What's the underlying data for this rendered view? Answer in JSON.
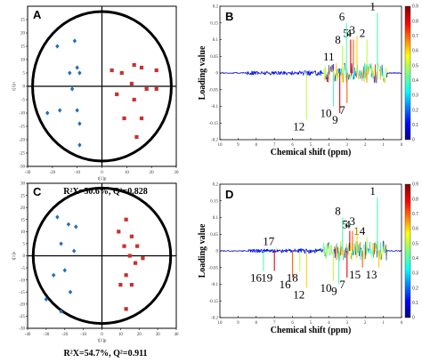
{
  "chart_data": [
    {
      "type": "scatter",
      "panel_label": "A",
      "xlabel": "t[1]p",
      "ylabel": "t[1]o",
      "xlim": [
        -30,
        30
      ],
      "ylim": [
        -30,
        30
      ],
      "xticks": [
        -30,
        -20,
        -10,
        0,
        10,
        20,
        30
      ],
      "yticks": [
        -30,
        -25,
        -20,
        -15,
        -10,
        -5,
        0,
        5,
        10,
        15,
        20,
        25
      ],
      "ellipse": {
        "rx": 28,
        "ry": 28
      },
      "stats": "R²X=50.6%, Q²=0.828",
      "series": [
        {
          "marker": "diamond",
          "color": "#1f6fbf",
          "points": [
            [
              -11,
              17
            ],
            [
              -18,
              15
            ],
            [
              -10,
              7
            ],
            [
              -13,
              5
            ],
            [
              -9,
              5
            ],
            [
              -12,
              -1
            ],
            [
              -22,
              -10
            ],
            [
              -17,
              -9
            ],
            [
              -10,
              -9
            ],
            [
              -9,
              -14
            ],
            [
              -9,
              -22
            ]
          ]
        },
        {
          "marker": "square",
          "color": "#c8312e",
          "points": [
            [
              4,
              6
            ],
            [
              13,
              8
            ],
            [
              16,
              7
            ],
            [
              8,
              5
            ],
            [
              22,
              6
            ],
            [
              12,
              1
            ],
            [
              18,
              -1
            ],
            [
              22,
              -1
            ],
            [
              6,
              -3
            ],
            [
              13,
              -5
            ],
            [
              9,
              -12
            ],
            [
              16,
              -12
            ],
            [
              14,
              -19
            ]
          ]
        }
      ]
    },
    {
      "type": "line",
      "panel_label": "B",
      "xlabel": "Chemical shift (ppm)",
      "ylabel": "Loading value",
      "xlim": [
        10,
        0
      ],
      "ylim": [
        -0.2,
        0.2
      ],
      "xticks": [
        10,
        9,
        8,
        7,
        6,
        5,
        4,
        3,
        2,
        1,
        0
      ],
      "yticks": [
        -0.2,
        -0.15,
        -0.1,
        -0.05,
        0,
        0.05,
        0.1,
        0.15,
        0.2
      ],
      "colorbar": {
        "min": 0,
        "max": 0.9,
        "ticks": [
          0,
          0.1,
          0.2,
          0.3,
          0.4,
          0.5,
          0.6,
          0.7,
          0.8,
          0.9
        ]
      },
      "peaks": [
        {
          "ppm": 1.33,
          "loading": 0.18,
          "label": "1"
        },
        {
          "ppm": 1.9,
          "loading": 0.1,
          "label": "2"
        },
        {
          "ppm": 2.45,
          "loading": 0.11,
          "label": "3"
        },
        {
          "ppm": 2.65,
          "loading": 0.1,
          "label": "4"
        },
        {
          "ppm": 2.8,
          "loading": 0.1,
          "label": "5"
        },
        {
          "ppm": 3.03,
          "loading": 0.15,
          "label": "6"
        },
        {
          "ppm": 3.25,
          "loading": 0.08,
          "label": "8"
        },
        {
          "ppm": 3.6,
          "loading": 0.03,
          "label": "11"
        },
        {
          "ppm": 3.0,
          "loading": -0.09,
          "label": "7"
        },
        {
          "ppm": 3.4,
          "loading": -0.12,
          "label": "9"
        },
        {
          "ppm": 3.75,
          "loading": -0.1,
          "label": "10"
        },
        {
          "ppm": 5.23,
          "loading": -0.14,
          "label": "12"
        }
      ]
    },
    {
      "type": "scatter",
      "panel_label": "C",
      "xlabel": "t[1]p",
      "ylabel": "t[1]o",
      "xlim": [
        -40,
        40
      ],
      "ylim": [
        -30,
        30
      ],
      "xticks": [
        -40,
        -30,
        -20,
        -10,
        0,
        10,
        20,
        30,
        40
      ],
      "yticks": [
        -30,
        -25,
        -20,
        -15,
        -10,
        -5,
        0,
        5,
        10,
        15,
        20,
        25,
        30
      ],
      "ellipse": {
        "rx": 37,
        "ry": 28
      },
      "stats": "R²X=54.7%, Q²=0.911",
      "series": [
        {
          "marker": "diamond",
          "color": "#1f6fbf",
          "points": [
            [
              -24,
              16
            ],
            [
              -18,
              13
            ],
            [
              -14,
              12
            ],
            [
              -22,
              5
            ],
            [
              -15,
              2
            ],
            [
              -20,
              -6
            ],
            [
              -26,
              -8
            ],
            [
              -17,
              -15
            ],
            [
              -30,
              -18
            ],
            [
              -22,
              -23
            ]
          ]
        },
        {
          "marker": "square",
          "color": "#c8312e",
          "points": [
            [
              13,
              15
            ],
            [
              9,
              10
            ],
            [
              16,
              8
            ],
            [
              19,
              4
            ],
            [
              12,
              4
            ],
            [
              15,
              0
            ],
            [
              22,
              -1
            ],
            [
              18,
              -3
            ],
            [
              13,
              -8
            ],
            [
              10,
              -12
            ],
            [
              16,
              -12
            ],
            [
              13,
              -22
            ]
          ]
        }
      ]
    },
    {
      "type": "line",
      "panel_label": "D",
      "xlabel": "Chemical shift (ppm)",
      "ylabel": "Loading value",
      "xlim": [
        10,
        0
      ],
      "ylim": [
        -0.2,
        0.2
      ],
      "xticks": [
        10,
        9,
        8,
        7,
        6,
        5,
        4,
        3,
        2,
        1,
        0
      ],
      "yticks": [
        -0.2,
        -0.15,
        -0.1,
        -0.05,
        0,
        0.05,
        0.1,
        0.15,
        0.2
      ],
      "colorbar": {
        "min": 0,
        "max": 0.9,
        "ticks": [
          0,
          0.1,
          0.2,
          0.3,
          0.4,
          0.5,
          0.6,
          0.7,
          0.8,
          0.9
        ]
      },
      "peaks": [
        {
          "ppm": 1.33,
          "loading": 0.16,
          "label": "1"
        },
        {
          "ppm": 1.9,
          "loading": 0.04,
          "label": "14"
        },
        {
          "ppm": 2.45,
          "loading": 0.07,
          "label": "3"
        },
        {
          "ppm": 2.7,
          "loading": 0.06,
          "label": "4"
        },
        {
          "ppm": 2.85,
          "loading": 0.06,
          "label": "5"
        },
        {
          "ppm": 3.25,
          "loading": 0.1,
          "label": "8"
        },
        {
          "ppm": 6.9,
          "loading": 0.01,
          "label": "17"
        },
        {
          "ppm": 1.25,
          "loading": -0.05,
          "label": "13"
        },
        {
          "ppm": 2.15,
          "loading": -0.05,
          "label": "15"
        },
        {
          "ppm": 3.0,
          "loading": -0.08,
          "label": "7"
        },
        {
          "ppm": 3.45,
          "loading": -0.1,
          "label": "9"
        },
        {
          "ppm": 3.75,
          "loading": -0.09,
          "label": "10"
        },
        {
          "ppm": 5.23,
          "loading": -0.11,
          "label": "12"
        },
        {
          "ppm": 6.0,
          "loading": -0.08,
          "label": "16"
        },
        {
          "ppm": 7.0,
          "loading": -0.06,
          "label": "19"
        },
        {
          "ppm": 7.6,
          "loading": -0.06,
          "label": "16"
        },
        {
          "ppm": 5.6,
          "loading": -0.06,
          "label": "18"
        }
      ]
    }
  ]
}
